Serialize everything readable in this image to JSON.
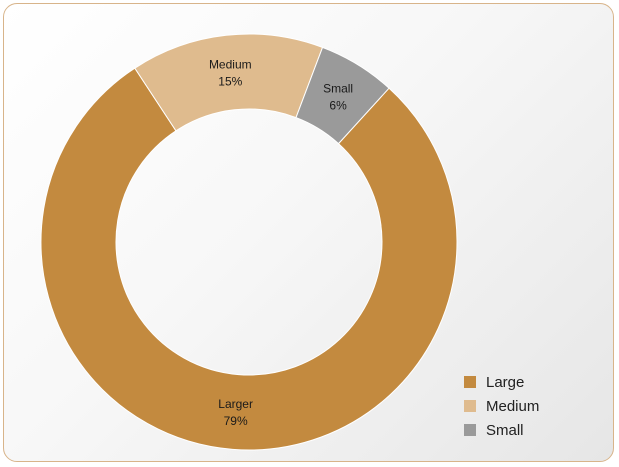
{
  "chart_data": {
    "type": "pie",
    "donut": true,
    "slices": [
      {
        "label": "Larger",
        "value_label": "79%",
        "value": 79,
        "color": "#c38a3f"
      },
      {
        "label": "Medium",
        "value_label": "15%",
        "value": 15,
        "color": "#dfbb8e"
      },
      {
        "label": "Small",
        "value_label": "6%",
        "value": 6,
        "color": "#9a9a9a"
      }
    ],
    "legend": {
      "placement": "bottom-right",
      "items": [
        {
          "label": "Large",
          "color": "#c38a3f"
        },
        {
          "label": "Medium",
          "color": "#dfbb8e"
        },
        {
          "label": "Small",
          "color": "#9a9a9a"
        }
      ]
    }
  }
}
